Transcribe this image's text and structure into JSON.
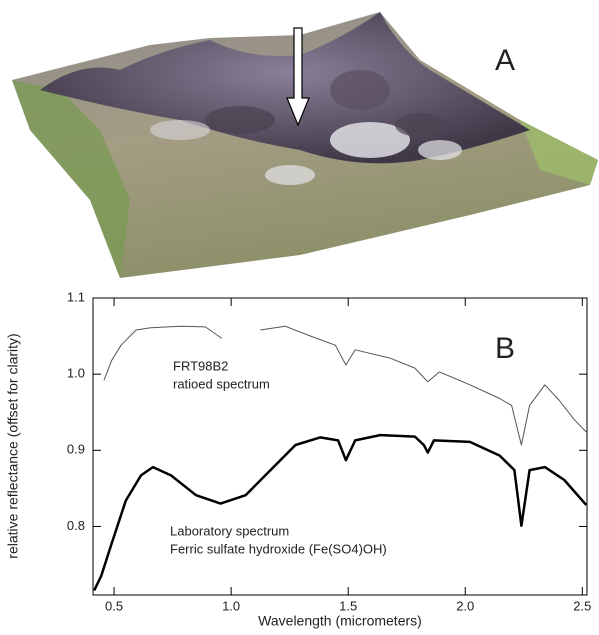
{
  "panel_labels": [
    "A",
    "B"
  ],
  "chart_data": {
    "type": "line",
    "xlabel": "Wavelength (micrometers)",
    "ylabel": "relative reflectance (offset for clarity)",
    "xlim": [
      0.41,
      2.52
    ],
    "ylim": [
      0.71,
      1.1
    ],
    "xticks": [
      0.5,
      {
        "value": 1,
        "label": "1.0"
      },
      1.5,
      {
        "value": 2,
        "label": "2.0"
      },
      2.5
    ],
    "yticks": [
      0.8,
      0.9,
      {
        "value": 1,
        "label": "1.0"
      },
      1.1
    ],
    "series": [
      {
        "label_lines": [
          "FRT98B2",
          "ratioed spectrum"
        ],
        "color": "#555555",
        "line_width": 1,
        "x": [
          0.457,
          0.49,
          0.53,
          0.594,
          0.657,
          0.785,
          0.89,
          0.96,
          null,
          1.125,
          1.23,
          1.34,
          1.445,
          1.49,
          1.53,
          1.68,
          1.785,
          1.84,
          1.89,
          2.02,
          2.147,
          2.198,
          2.24,
          2.275,
          2.34,
          2.4,
          2.466,
          2.517
        ],
        "values": [
          0.992,
          1.018,
          1.038,
          1.058,
          1.061,
          1.063,
          1.062,
          1.047,
          null,
          1.058,
          1.063,
          1.05,
          1.038,
          1.012,
          1.032,
          1.021,
          1.008,
          0.99,
          1.003,
          0.986,
          0.968,
          0.959,
          0.907,
          0.959,
          0.986,
          0.966,
          0.94,
          0.924
        ]
      },
      {
        "label_lines": [
          "Laboratory spectrum",
          "Ferric sulfate hydroxide (Fe(SO4)OH)"
        ],
        "color": "#000000",
        "line_width": 2.5,
        "x": [
          0.415,
          0.445,
          0.487,
          0.55,
          0.615,
          0.666,
          0.743,
          0.85,
          0.955,
          1.062,
          1.168,
          1.275,
          1.38,
          1.457,
          1.49,
          1.53,
          1.636,
          1.785,
          1.823,
          1.84,
          1.866,
          2.02,
          2.147,
          2.21,
          2.24,
          2.275,
          2.34,
          2.423,
          2.517
        ],
        "values": [
          0.716,
          0.735,
          0.775,
          0.834,
          0.867,
          0.878,
          0.867,
          0.841,
          0.83,
          0.841,
          0.874,
          0.907,
          0.917,
          0.913,
          0.887,
          0.913,
          0.92,
          0.918,
          0.907,
          0.897,
          0.913,
          0.911,
          0.893,
          0.874,
          0.801,
          0.874,
          0.878,
          0.861,
          0.828
        ]
      }
    ]
  }
}
